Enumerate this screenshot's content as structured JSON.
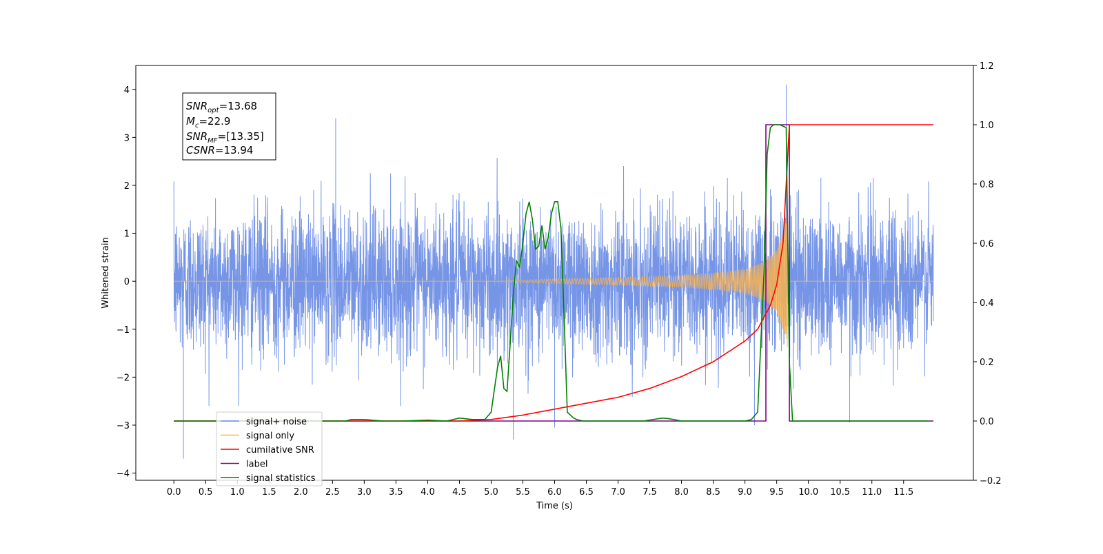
{
  "chart_data": {
    "type": "line",
    "xlabel": "Time (s)",
    "ylabel": "Whitened strain",
    "xlim": [
      -0.6,
      12.6
    ],
    "ylim": [
      -4.15,
      4.5
    ],
    "y2lim": [
      -0.2,
      1.2
    ],
    "x_ticks": [
      "0.0",
      "0.5",
      "1.0",
      "1.5",
      "2.0",
      "2.5",
      "3.0",
      "3.5",
      "4.0",
      "4.5",
      "5.0",
      "5.5",
      "6.0",
      "6.5",
      "7.0",
      "7.5",
      "8.0",
      "8.5",
      "9.0",
      "9.5",
      "10.0",
      "10.5",
      "11.0",
      "11.5"
    ],
    "y_ticks": [
      "4",
      "3",
      "2",
      "1",
      "0",
      "−1",
      "−2",
      "−3",
      "−4"
    ],
    "y2_ticks": [
      "1.2",
      "1.0",
      "0.8",
      "0.6",
      "0.4",
      "0.2",
      "0.0",
      "−0.2"
    ],
    "annotation": {
      "snr_opt": "=13.68",
      "mc": "=22.9",
      "snr_mf": "=[13.35]",
      "csnr": "=13.94"
    },
    "legend": {
      "placement": "lower-left",
      "items": [
        {
          "label": "signal+ noise",
          "color": "#6f8fe6"
        },
        {
          "label": "signal only",
          "color": "#ffb347"
        },
        {
          "label": "cumilative SNR",
          "color": "#ff0000"
        },
        {
          "label": "label",
          "color": "#800080"
        },
        {
          "label": "signal statistics",
          "color": "#008000"
        }
      ]
    },
    "series": [
      {
        "name": "signal+ noise",
        "axis": "left",
        "color": "#6f8fe6",
        "description_points": {
          "spikes": [
            [
              0.15,
              -3.7
            ],
            [
              2.55,
              3.4
            ],
            [
              5.35,
              -3.3
            ],
            [
              6.0,
              -3.05
            ],
            [
              9.15,
              -3.0
            ],
            [
              9.65,
              4.1
            ],
            [
              10.65,
              -2.95
            ]
          ]
        }
      },
      {
        "name": "signal only",
        "axis": "left",
        "color": "#ffb347",
        "envelope_x": [
          0.0,
          5.0,
          6.0,
          7.0,
          8.0,
          8.5,
          9.0,
          9.3,
          9.5,
          9.6,
          9.67,
          9.7,
          11.97
        ],
        "envelope_y": [
          0.0,
          0.0,
          0.05,
          0.08,
          0.12,
          0.17,
          0.25,
          0.4,
          0.65,
          1.0,
          1.4,
          0.0,
          0.0
        ]
      },
      {
        "name": "cumilative SNR",
        "axis": "right",
        "color": "#ff0000",
        "x": [
          0.0,
          4.5,
          5.0,
          5.5,
          6.0,
          6.5,
          7.0,
          7.5,
          8.0,
          8.5,
          9.0,
          9.2,
          9.4,
          9.5,
          9.6,
          9.65,
          9.7,
          11.97
        ],
        "y": [
          0.0,
          0.0,
          0.005,
          0.02,
          0.04,
          0.06,
          0.08,
          0.11,
          0.15,
          0.2,
          0.27,
          0.31,
          0.39,
          0.46,
          0.6,
          0.8,
          1.0,
          1.0
        ]
      },
      {
        "name": "label",
        "axis": "right",
        "color": "#800080",
        "x": [
          0.0,
          9.33,
          9.33,
          9.7,
          9.7,
          11.97
        ],
        "y": [
          0.0,
          0.0,
          1.0,
          1.0,
          0.0,
          0.0
        ]
      },
      {
        "name": "signal statistics",
        "axis": "right",
        "color": "#008000",
        "x": [
          0.0,
          2.7,
          2.8,
          3.0,
          3.3,
          3.6,
          4.0,
          4.3,
          4.5,
          4.7,
          4.9,
          5.0,
          5.1,
          5.15,
          5.2,
          5.25,
          5.3,
          5.35,
          5.4,
          5.45,
          5.5,
          5.55,
          5.6,
          5.65,
          5.7,
          5.75,
          5.8,
          5.85,
          5.9,
          5.95,
          6.0,
          6.05,
          6.1,
          6.15,
          6.2,
          6.25,
          6.3,
          6.35,
          6.45,
          6.6,
          7.4,
          7.7,
          7.8,
          8.0,
          8.2,
          9.0,
          9.1,
          9.2,
          9.3,
          9.35,
          9.4,
          9.45,
          9.55,
          9.65,
          9.7,
          9.75,
          11.9
        ],
        "y": [
          0.0,
          0.0,
          0.005,
          0.005,
          0.0,
          0.0,
          0.003,
          0.0,
          0.01,
          0.005,
          0.005,
          0.03,
          0.18,
          0.22,
          0.11,
          0.1,
          0.26,
          0.43,
          0.54,
          0.52,
          0.6,
          0.7,
          0.74,
          0.68,
          0.58,
          0.59,
          0.66,
          0.58,
          0.62,
          0.7,
          0.74,
          0.74,
          0.65,
          0.35,
          0.03,
          0.02,
          0.01,
          0.005,
          0.0,
          0.0,
          0.0,
          0.01,
          0.008,
          0.0,
          0.0,
          0.0,
          0.005,
          0.03,
          0.5,
          0.9,
          0.99,
          1.0,
          1.0,
          0.99,
          0.2,
          0.0,
          0.0
        ]
      }
    ]
  }
}
